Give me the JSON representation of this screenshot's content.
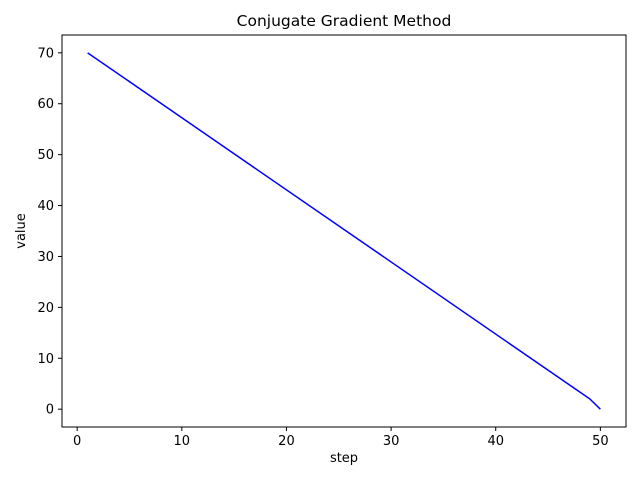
{
  "chart_data": {
    "type": "line",
    "title": "Conjugate Gradient Method",
    "xlabel": "step",
    "ylabel": "value",
    "xlim": [
      -1.45,
      52.45
    ],
    "ylim": [
      -3.5,
      73.5
    ],
    "x_ticks": [
      0,
      10,
      20,
      30,
      40,
      50
    ],
    "y_ticks": [
      0,
      10,
      20,
      30,
      40,
      50,
      60,
      70
    ],
    "grid": false,
    "legend": "none",
    "series": [
      {
        "color": "#0000ff",
        "x": [
          1,
          49,
          50
        ],
        "y": [
          70,
          2,
          0
        ]
      }
    ]
  }
}
